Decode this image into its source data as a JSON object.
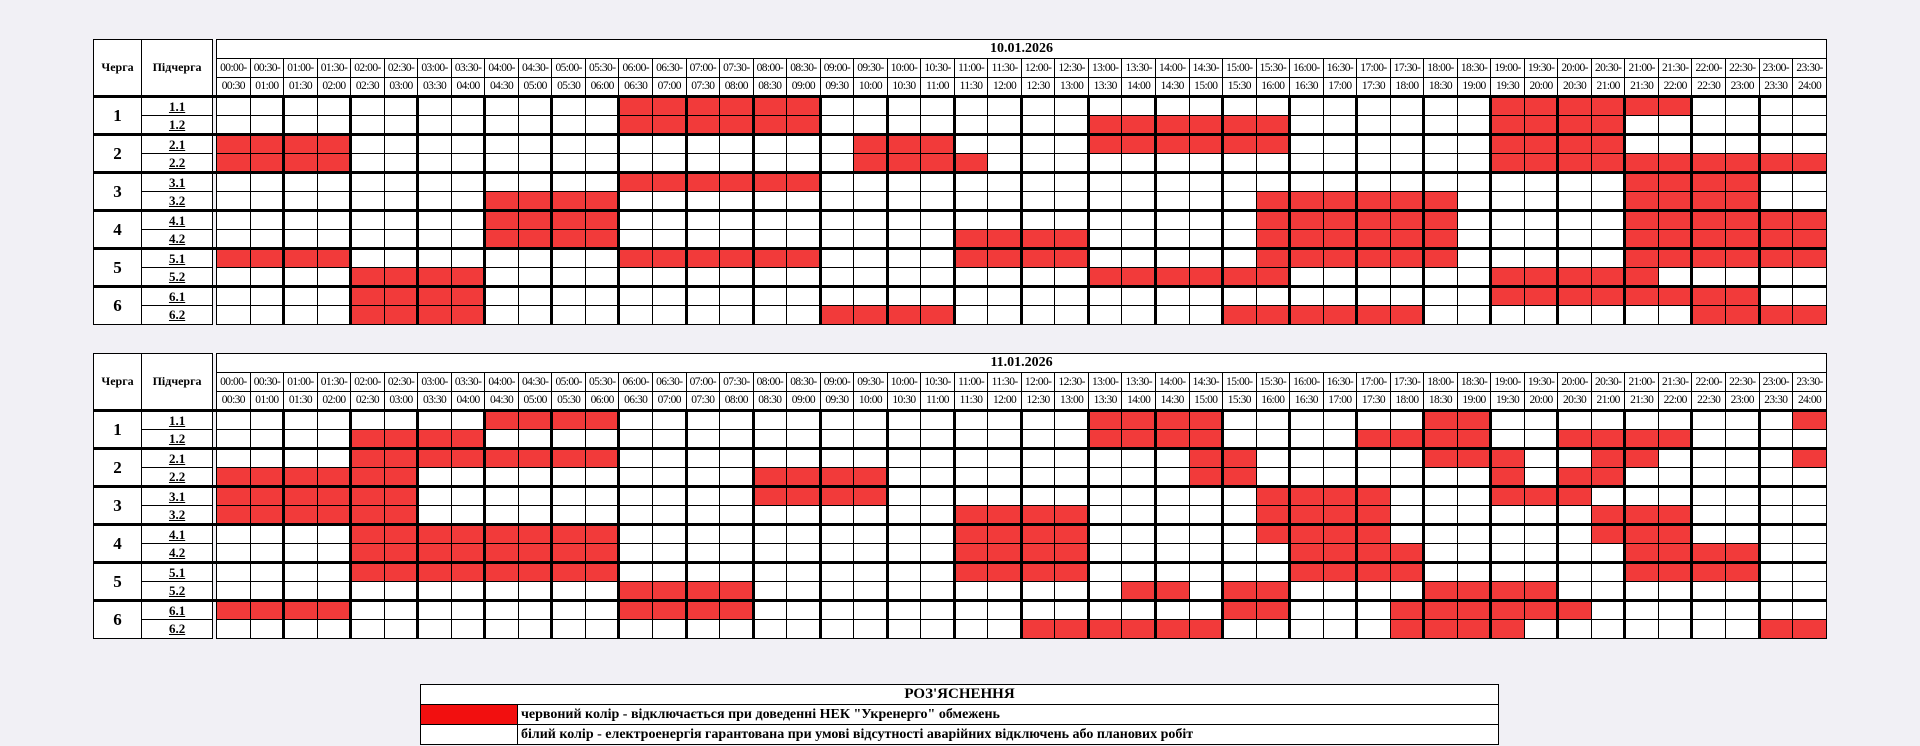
{
  "header": {
    "queue_label": "Черга",
    "subqueue_label": "Підчерга"
  },
  "times_top": [
    "00:00-",
    "00:30-",
    "01:00-",
    "01:30-",
    "02:00-",
    "02:30-",
    "03:00-",
    "03:30-",
    "04:00-",
    "04:30-",
    "05:00-",
    "05:30-",
    "06:00-",
    "06:30-",
    "07:00-",
    "07:30-",
    "08:00-",
    "08:30-",
    "09:00-",
    "09:30-",
    "10:00-",
    "10:30-",
    "11:00-",
    "11:30-",
    "12:00-",
    "12:30-",
    "13:00-",
    "13:30-",
    "14:00-",
    "14:30-",
    "15:00-",
    "15:30-",
    "16:00-",
    "16:30-",
    "17:00-",
    "17:30-",
    "18:00-",
    "18:30-",
    "19:00-",
    "19:30-",
    "20:00-",
    "20:30-",
    "21:00-",
    "21:30-",
    "22:00-",
    "22:30-",
    "23:00-",
    "23:30-"
  ],
  "times_bottom": [
    "00:30",
    "01:00",
    "01:30",
    "02:00",
    "02:30",
    "03:00",
    "03:30",
    "04:00",
    "04:30",
    "05:00",
    "05:30",
    "06:00",
    "06:30",
    "07:00",
    "07:30",
    "08:00",
    "08:30",
    "09:00",
    "09:30",
    "10:00",
    "10:30",
    "11:00",
    "11:30",
    "12:00",
    "12:30",
    "13:00",
    "13:30",
    "14:00",
    "14:30",
    "15:00",
    "15:30",
    "16:00",
    "16:30",
    "17:00",
    "17:30",
    "18:00",
    "18:30",
    "19:00",
    "19:30",
    "20:00",
    "20:30",
    "21:00",
    "21:30",
    "22:00",
    "22:30",
    "23:00",
    "23:30",
    "24:00"
  ],
  "queues": [
    "1",
    "2",
    "3",
    "4",
    "5",
    "6"
  ],
  "subqueues": [
    "1.1",
    "1.2",
    "2.1",
    "2.2",
    "3.1",
    "3.2",
    "4.1",
    "4.2",
    "5.1",
    "5.2",
    "6.1",
    "6.2"
  ],
  "schedules": [
    {
      "date": "10.01.2026",
      "outage_rows": [
        "000000000000111111000000000000000000001111110000",
        "000000000000111111000000001111110000001111000000",
        "111100000000000000011100001111110000001111000000",
        "111100000000000000011110000000000000001111111111",
        "000000000000111111000000000000000000000000111100",
        "000000001111000000000000000000011111100000111100",
        "000000001111000000000000000000011111100000111111",
        "000000001111000000000011110000011111100000111111",
        "111100000000111111000011110000011111100000111111",
        "000011110000000000000000001111110000001111100000",
        "000011110000000000000000000000000000001111111100",
        "000011110000000000111100000000111111000000001111"
      ]
    },
    {
      "date": "11.01.2026",
      "outage_rows": [
        "000000001111000000000000001111000000110000000001",
        "000011110000000000000000001111000011110011110000",
        "000011111111000000000000000001100000111001100001",
        "111111000000000011110000000001100000001011000000",
        "111111000000000011110000000000011110001110000000",
        "111111000000000000000011110000011110000001110000",
        "000011111111000000000011110000011110000001110000",
        "000011111111000000000011110000001111000000111100",
        "000011111111000000000011110000001111000000111100",
        "000000000000111100000000000110110000111100000000",
        "111100000000111100000000000000110001111110000000",
        "000000000000000000000000111111000001111000000011"
      ]
    }
  ],
  "legend": {
    "title": "РОЗ'ЯСНЕННЯ",
    "red_text": "червоний колір - відключається при доведенні НЕК \"Укренерго\" обмежень",
    "white_text": "білий колір - електроенергія гарантована при умові відсутності аварійних відключень або планових робіт",
    "colors": {
      "red": "#f23a3a",
      "white": "#ffffff"
    }
  }
}
